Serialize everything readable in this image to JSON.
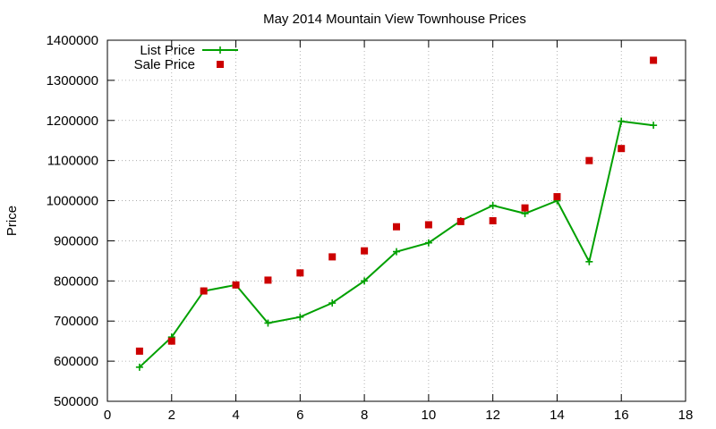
{
  "chart_data": {
    "type": "line",
    "title": "May 2014 Mountain View Townhouse Prices",
    "xlabel": "",
    "ylabel": "Price",
    "xlim": [
      0,
      18
    ],
    "ylim": [
      500000,
      1400000
    ],
    "xticks": [
      0,
      2,
      4,
      6,
      8,
      10,
      12,
      14,
      16,
      18
    ],
    "yticks": [
      500000,
      600000,
      700000,
      800000,
      900000,
      1000000,
      1100000,
      1200000,
      1300000,
      1400000
    ],
    "grid": true,
    "legend_position": "top-left",
    "series": [
      {
        "name": "List Price",
        "style": "line-with-plus-markers",
        "color": "#00a000",
        "x": [
          1,
          2,
          3,
          4,
          5,
          6,
          7,
          8,
          9,
          10,
          11,
          12,
          13,
          14,
          15,
          16,
          17
        ],
        "values": [
          585000,
          660000,
          775000,
          790000,
          695000,
          710000,
          745000,
          800000,
          873000,
          895000,
          950000,
          988000,
          968000,
          1000000,
          848000,
          1198000,
          1188000
        ]
      },
      {
        "name": "Sale Price",
        "style": "square-markers",
        "color": "#cc0000",
        "x": [
          1,
          2,
          3,
          4,
          5,
          6,
          7,
          8,
          9,
          10,
          11,
          12,
          13,
          14,
          15,
          16,
          17
        ],
        "values": [
          625000,
          650000,
          775000,
          790000,
          802000,
          820000,
          860000,
          875000,
          935000,
          940000,
          948000,
          950000,
          982000,
          1010000,
          1100000,
          1130000,
          1350000
        ]
      }
    ]
  }
}
